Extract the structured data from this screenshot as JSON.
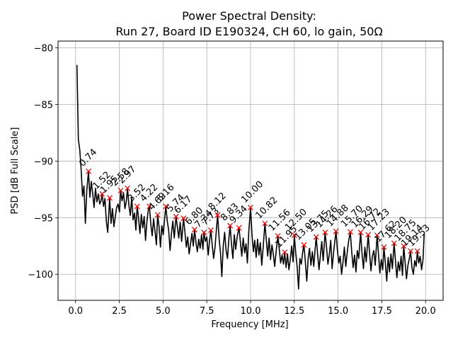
{
  "chart_data": {
    "type": "line",
    "title_line1": "Power Spectral Density:",
    "title_line2": "Run 27, Board ID E190324, CH 60, lo gain, 50Ω",
    "xlabel": "Frequency [MHz]",
    "ylabel": "PSD [dB Full Scale]",
    "xlim": [
      -1.0,
      21.0
    ],
    "ylim": [
      -102.3,
      -79.4
    ],
    "xticks": [
      0.0,
      2.5,
      5.0,
      7.5,
      10.0,
      12.5,
      15.0,
      17.5,
      20.0
    ],
    "xtick_labels": [
      "0.0",
      "2.5",
      "5.0",
      "7.5",
      "10.0",
      "12.5",
      "15.0",
      "17.5",
      "20.0"
    ],
    "yticks": [
      -80,
      -85,
      -90,
      -95,
      -100
    ],
    "ytick_labels": [
      "−80",
      "−85",
      "−90",
      "−95",
      "−100"
    ],
    "grid": true,
    "line_color": "#000000",
    "marker_color": "#ff0000",
    "series": [
      {
        "name": "PSD",
        "x": [
          0.08,
          0.16,
          0.24,
          0.32,
          0.4,
          0.48,
          0.56,
          0.64,
          0.74,
          0.82,
          0.9,
          0.98,
          1.06,
          1.14,
          1.22,
          1.3,
          1.38,
          1.46,
          1.52,
          1.6,
          1.68,
          1.76,
          1.84,
          1.95,
          2.03,
          2.11,
          2.19,
          2.27,
          2.35,
          2.43,
          2.51,
          2.58,
          2.66,
          2.74,
          2.82,
          2.9,
          2.97,
          3.05,
          3.13,
          3.21,
          3.29,
          3.37,
          3.45,
          3.52,
          3.6,
          3.68,
          3.76,
          3.84,
          3.92,
          4.0,
          4.08,
          4.16,
          4.22,
          4.3,
          4.38,
          4.46,
          4.54,
          4.62,
          4.69,
          4.77,
          4.85,
          4.93,
          5.01,
          5.09,
          5.16,
          5.24,
          5.32,
          5.4,
          5.48,
          5.56,
          5.64,
          5.74,
          5.82,
          5.9,
          5.98,
          6.06,
          6.17,
          6.25,
          6.33,
          6.41,
          6.49,
          6.57,
          6.65,
          6.73,
          6.8,
          6.88,
          6.96,
          7.04,
          7.12,
          7.2,
          7.28,
          7.34,
          7.42,
          7.5,
          7.58,
          7.66,
          7.73,
          7.81,
          7.89,
          7.97,
          8.05,
          8.12,
          8.2,
          8.28,
          8.36,
          8.44,
          8.52,
          8.6,
          8.68,
          8.76,
          8.83,
          8.91,
          8.99,
          9.07,
          9.15,
          9.23,
          9.34,
          9.42,
          9.5,
          9.58,
          9.66,
          9.74,
          9.82,
          9.9,
          10.0,
          10.08,
          10.16,
          10.24,
          10.32,
          10.4,
          10.48,
          10.56,
          10.64,
          10.72,
          10.82,
          10.9,
          10.98,
          11.06,
          11.14,
          11.22,
          11.3,
          11.38,
          11.46,
          11.56,
          11.64,
          11.72,
          11.8,
          11.88,
          11.95,
          12.03,
          12.11,
          12.19,
          12.27,
          12.35,
          12.43,
          12.5,
          12.58,
          12.66,
          12.74,
          12.82,
          12.9,
          12.98,
          13.05,
          13.13,
          13.21,
          13.29,
          13.37,
          13.45,
          13.53,
          13.61,
          13.69,
          13.75,
          13.83,
          13.91,
          13.99,
          14.07,
          14.15,
          14.26,
          14.34,
          14.42,
          14.5,
          14.58,
          14.66,
          14.74,
          14.88,
          14.96,
          15.04,
          15.12,
          15.2,
          15.28,
          15.36,
          15.44,
          15.52,
          15.6,
          15.7,
          15.78,
          15.86,
          15.94,
          16.02,
          16.1,
          16.18,
          16.29,
          16.37,
          16.45,
          16.53,
          16.61,
          16.72,
          16.8,
          16.88,
          16.96,
          17.04,
          17.12,
          17.23,
          17.31,
          17.39,
          17.47,
          17.55,
          17.62,
          17.7,
          17.78,
          17.86,
          17.94,
          18.02,
          18.1,
          18.2,
          18.28,
          18.36,
          18.44,
          18.52,
          18.6,
          18.68,
          18.75,
          18.83,
          18.91,
          18.99,
          19.07,
          19.14,
          19.22,
          19.3,
          19.38,
          19.46,
          19.53,
          19.61,
          19.69,
          19.77,
          19.85,
          19.92
        ],
        "y": [
          -81.5,
          -88.1,
          -89.0,
          -90.7,
          -93.1,
          -92.2,
          -95.5,
          -92.6,
          -90.9,
          -93.2,
          -91.8,
          -92.9,
          -94.1,
          -92.4,
          -93.6,
          -92.9,
          -93.8,
          -93.5,
          -92.9,
          -94.0,
          -93.3,
          -95.3,
          -96.3,
          -93.25,
          -95.5,
          -94.2,
          -95.8,
          -94.9,
          -94.1,
          -93.8,
          -94.5,
          -92.6,
          -93.5,
          -92.8,
          -94.2,
          -93.6,
          -92.4,
          -93.9,
          -94.8,
          -93.2,
          -95.2,
          -94.6,
          -96.1,
          -94.0,
          -95.0,
          -96.4,
          -94.7,
          -95.9,
          -94.9,
          -97.0,
          -95.3,
          -94.3,
          -94.0,
          -95.6,
          -96.6,
          -95.1,
          -96.2,
          -97.4,
          -94.75,
          -95.8,
          -97.6,
          -95.7,
          -96.5,
          -95.1,
          -94.0,
          -95.3,
          -96.1,
          -97.9,
          -96.4,
          -95.3,
          -96.8,
          -94.9,
          -95.8,
          -96.8,
          -95.4,
          -97.1,
          -95.05,
          -96.3,
          -97.6,
          -96.7,
          -98.2,
          -97.3,
          -96.4,
          -97.5,
          -96.05,
          -97.2,
          -98.0,
          -96.9,
          -97.7,
          -96.5,
          -97.8,
          -96.3,
          -97.1,
          -96.7,
          -98.3,
          -97.0,
          -96.1,
          -97.4,
          -98.6,
          -97.6,
          -96.0,
          -94.75,
          -96.8,
          -98.1,
          -100.2,
          -97.5,
          -96.3,
          -97.9,
          -98.6,
          -96.9,
          -95.7,
          -97.3,
          -98.6,
          -96.5,
          -97.8,
          -96.7,
          -95.9,
          -97.2,
          -98.4,
          -96.8,
          -98.1,
          -97.3,
          -99.0,
          -96.2,
          -94.1,
          -96.5,
          -98.0,
          -97.0,
          -98.5,
          -96.9,
          -98.3,
          -97.2,
          -99.2,
          -97.6,
          -95.5,
          -97.0,
          -98.4,
          -96.8,
          -98.7,
          -97.4,
          -98.2,
          -99.3,
          -98.0,
          -96.6,
          -97.8,
          -99.0,
          -98.3,
          -99.1,
          -98.05,
          -99.4,
          -98.2,
          -99.6,
          -98.7,
          -97.5,
          -98.9,
          -96.55,
          -98.1,
          -99.3,
          -101.3,
          -98.6,
          -99.1,
          -98.0,
          -97.4,
          -98.9,
          -100.6,
          -98.6,
          -97.7,
          -99.2,
          -98.0,
          -99.3,
          -97.8,
          -96.7,
          -98.2,
          -99.6,
          -98.3,
          -97.1,
          -98.8,
          -96.3,
          -97.6,
          -99.1,
          -98.2,
          -97.0,
          -99.5,
          -98.1,
          -96.2,
          -97.8,
          -99.0,
          -98.4,
          -100.0,
          -98.9,
          -97.6,
          -99.3,
          -98.1,
          -97.1,
          -96.25,
          -98.0,
          -99.4,
          -98.3,
          -99.8,
          -97.9,
          -98.6,
          -96.3,
          -98.2,
          -99.5,
          -97.6,
          -98.9,
          -96.5,
          -98.1,
          -99.7,
          -98.4,
          -97.9,
          -99.2,
          -96.55,
          -98.3,
          -99.9,
          -98.7,
          -99.6,
          -97.6,
          -99.0,
          -100.6,
          -98.5,
          -99.8,
          -98.2,
          -99.5,
          -97.25,
          -98.8,
          -100.3,
          -98.9,
          -99.7,
          -98.4,
          -100.1,
          -97.5,
          -98.9,
          -100.4,
          -99.2,
          -98.6,
          -97.95,
          -99.4,
          -100.0,
          -98.8,
          -99.3,
          -97.95,
          -99.0,
          -98.4,
          -99.6,
          -98.7,
          -96.4
        ]
      }
    ],
    "peaks": [
      {
        "x": 0.74,
        "y": -90.9,
        "label": "0.74"
      },
      {
        "x": 1.52,
        "y": -92.9,
        "label": "1.52"
      },
      {
        "x": 1.95,
        "y": -93.25,
        "label": "1.95"
      },
      {
        "x": 2.58,
        "y": -92.6,
        "label": "2.58"
      },
      {
        "x": 2.97,
        "y": -92.4,
        "label": "2.97"
      },
      {
        "x": 3.52,
        "y": -94.0,
        "label": "3.52"
      },
      {
        "x": 4.22,
        "y": -94.0,
        "label": "4.22"
      },
      {
        "x": 4.69,
        "y": -94.75,
        "label": "4.69"
      },
      {
        "x": 5.16,
        "y": -94.0,
        "label": "5.16"
      },
      {
        "x": 5.74,
        "y": -94.9,
        "label": "5.74"
      },
      {
        "x": 6.17,
        "y": -95.05,
        "label": "6.17"
      },
      {
        "x": 6.8,
        "y": -96.05,
        "label": "6.80"
      },
      {
        "x": 7.34,
        "y": -96.3,
        "label": "7.34"
      },
      {
        "x": 7.73,
        "y": -96.1,
        "label": "7.73"
      },
      {
        "x": 8.12,
        "y": -94.75,
        "label": "8.12"
      },
      {
        "x": 8.83,
        "y": -95.7,
        "label": "8.83"
      },
      {
        "x": 9.34,
        "y": -95.9,
        "label": "9.34"
      },
      {
        "x": 10.0,
        "y": -94.1,
        "label": "10.00"
      },
      {
        "x": 10.82,
        "y": -95.5,
        "label": "10.82"
      },
      {
        "x": 11.56,
        "y": -96.6,
        "label": "11.56"
      },
      {
        "x": 11.95,
        "y": -98.05,
        "label": "11.95"
      },
      {
        "x": 12.5,
        "y": -96.55,
        "label": "12.50"
      },
      {
        "x": 13.05,
        "y": -97.4,
        "label": "13.05"
      },
      {
        "x": 13.75,
        "y": -96.7,
        "label": "13.75"
      },
      {
        "x": 14.26,
        "y": -96.3,
        "label": "14.26"
      },
      {
        "x": 14.88,
        "y": -96.2,
        "label": "14.88"
      },
      {
        "x": 15.7,
        "y": -96.25,
        "label": "15.70"
      },
      {
        "x": 16.29,
        "y": -96.3,
        "label": "16.29"
      },
      {
        "x": 16.72,
        "y": -96.5,
        "label": "16.72"
      },
      {
        "x": 17.23,
        "y": -96.55,
        "label": "17.23"
      },
      {
        "x": 17.62,
        "y": -97.6,
        "label": "17.62"
      },
      {
        "x": 18.2,
        "y": -97.25,
        "label": "18.20"
      },
      {
        "x": 18.75,
        "y": -97.5,
        "label": "18.75"
      },
      {
        "x": 19.14,
        "y": -97.95,
        "label": "19.14"
      },
      {
        "x": 19.53,
        "y": -97.95,
        "label": "19.53"
      }
    ]
  }
}
